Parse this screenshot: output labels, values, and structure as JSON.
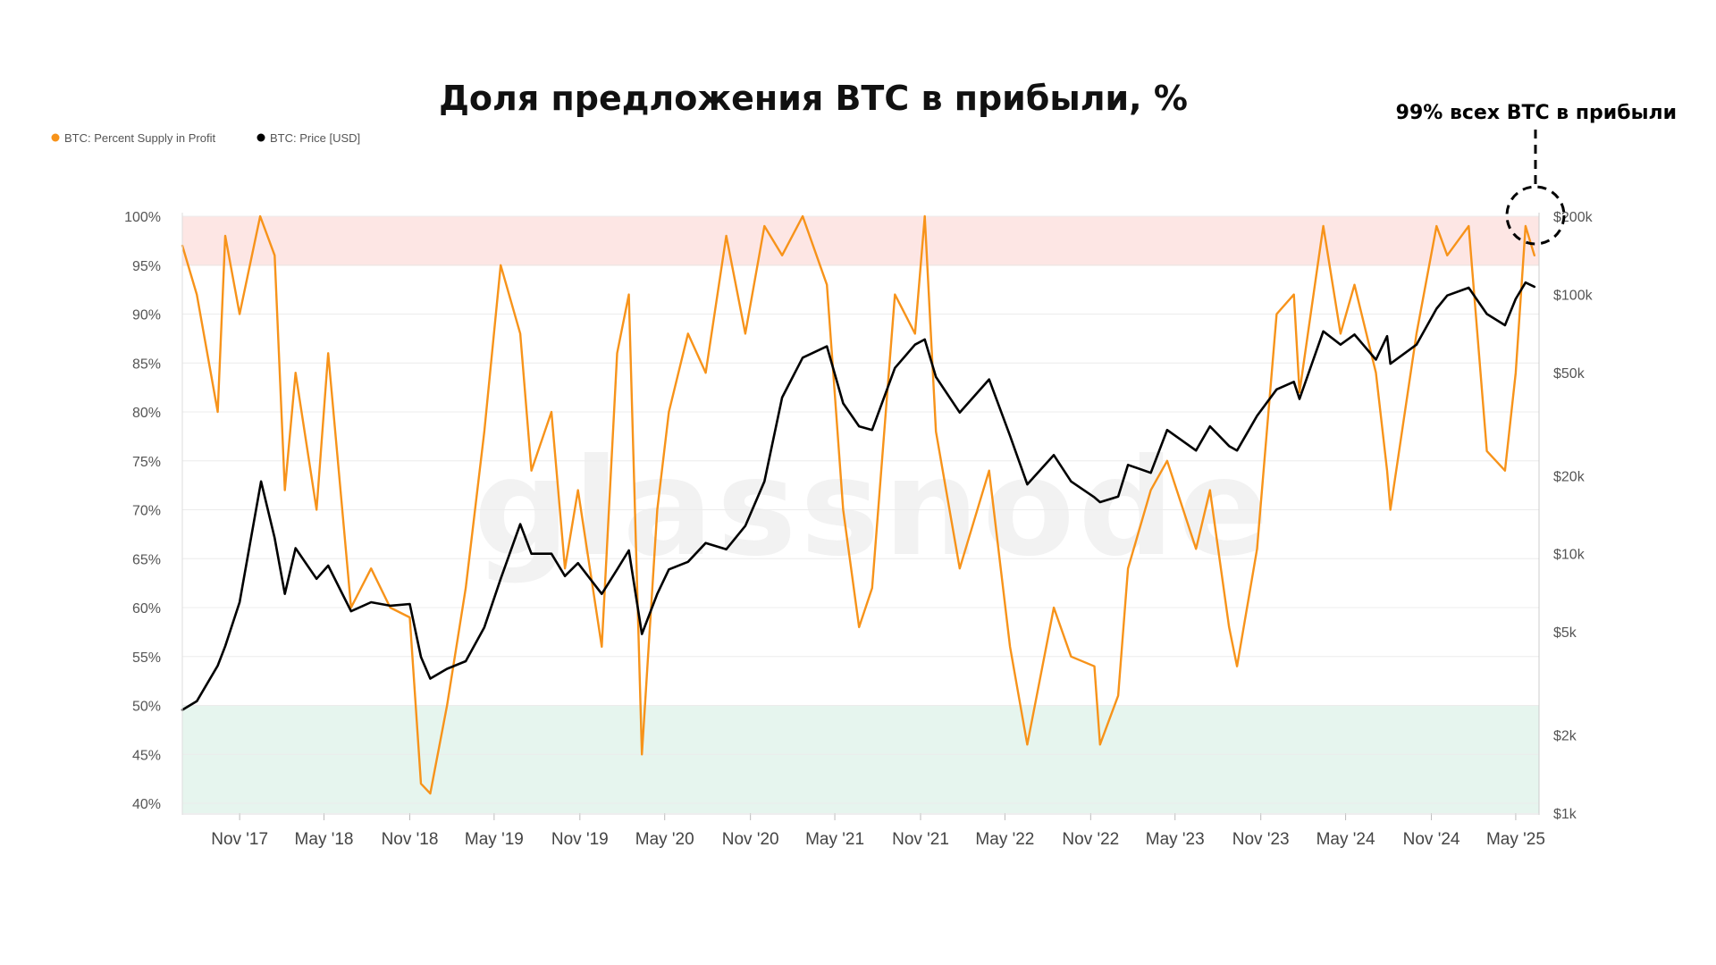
{
  "watermark": "glassnode",
  "callout": {
    "text": "99% всех BTC в прибыли"
  },
  "chart_data": {
    "type": "line",
    "title": "Доля предложения BTC в прибыли, %",
    "legend": [
      {
        "name": "BTC: Percent Supply in Profit",
        "color": "#F7931A"
      },
      {
        "name": "BTC: Price [USD]",
        "color": "#000000"
      }
    ],
    "legend_position": "top-left",
    "grid": true,
    "x_range": [
      "2017-07-01",
      "2025-06-20"
    ],
    "x_ticks": [
      {
        "label": "Nov '17",
        "date": "2017-11-01"
      },
      {
        "label": "May '18",
        "date": "2018-05-01"
      },
      {
        "label": "Nov '18",
        "date": "2018-11-01"
      },
      {
        "label": "May '19",
        "date": "2019-05-01"
      },
      {
        "label": "Nov '19",
        "date": "2019-11-01"
      },
      {
        "label": "May '20",
        "date": "2020-05-01"
      },
      {
        "label": "Nov '20",
        "date": "2020-11-01"
      },
      {
        "label": "May '21",
        "date": "2021-05-01"
      },
      {
        "label": "Nov '21",
        "date": "2021-11-01"
      },
      {
        "label": "May '22",
        "date": "2022-05-01"
      },
      {
        "label": "Nov '22",
        "date": "2022-11-01"
      },
      {
        "label": "May '23",
        "date": "2023-05-01"
      },
      {
        "label": "Nov '23",
        "date": "2023-11-01"
      },
      {
        "label": "May '24",
        "date": "2024-05-01"
      },
      {
        "label": "Nov '24",
        "date": "2024-11-01"
      },
      {
        "label": "May '25",
        "date": "2025-05-01"
      }
    ],
    "y_left": {
      "unit": "%",
      "range": [
        39,
        100
      ],
      "ticks": [
        "100%",
        "95%",
        "90%",
        "85%",
        "80%",
        "75%",
        "70%",
        "65%",
        "60%",
        "55%",
        "50%",
        "45%",
        "40%"
      ],
      "tick_values": [
        100,
        95,
        90,
        85,
        80,
        75,
        70,
        65,
        60,
        55,
        50,
        45,
        40
      ]
    },
    "y_right": {
      "scale": "log",
      "range": [
        1000,
        200000
      ],
      "ticks": [
        "$200k",
        "$100k",
        "$50k",
        "$20k",
        "$10k",
        "$5k",
        "$2k",
        "$1k"
      ],
      "tick_values": [
        200000,
        100000,
        50000,
        20000,
        10000,
        5000,
        2000,
        1000
      ]
    },
    "bands": [
      {
        "from": 95,
        "to": 100,
        "color": "#FDE6E4"
      },
      {
        "from": 39,
        "to": 50,
        "color": "#E6F5EE"
      }
    ],
    "series": [
      {
        "name": "BTC: Percent Supply in Profit",
        "color": "#F7931A",
        "axis": "left",
        "x": [
          "2017-07-01",
          "2017-08-01",
          "2017-09-15",
          "2017-10-01",
          "2017-11-01",
          "2017-12-15",
          "2018-01-15",
          "2018-02-06",
          "2018-03-01",
          "2018-04-15",
          "2018-05-10",
          "2018-06-28",
          "2018-08-10",
          "2018-09-20",
          "2018-11-01",
          "2018-11-25",
          "2018-12-15",
          "2019-01-20",
          "2019-03-01",
          "2019-04-10",
          "2019-05-15",
          "2019-06-26",
          "2019-07-20",
          "2019-09-01",
          "2019-09-30",
          "2019-10-28",
          "2019-12-18",
          "2020-01-20",
          "2020-02-14",
          "2020-03-13",
          "2020-04-15",
          "2020-05-10",
          "2020-06-20",
          "2020-07-28",
          "2020-09-10",
          "2020-10-21",
          "2020-12-01",
          "2021-01-08",
          "2021-02-21",
          "2021-04-14",
          "2021-05-19",
          "2021-06-22",
          "2021-07-20",
          "2021-09-07",
          "2021-10-20",
          "2021-11-10",
          "2021-12-04",
          "2022-01-24",
          "2022-03-28",
          "2022-05-12",
          "2022-06-18",
          "2022-08-14",
          "2022-09-20",
          "2022-11-09",
          "2022-11-21",
          "2022-12-30",
          "2023-01-20",
          "2023-03-10",
          "2023-04-14",
          "2023-06-15",
          "2023-07-15",
          "2023-08-25",
          "2023-09-11",
          "2023-10-24",
          "2023-12-05",
          "2024-01-11",
          "2024-01-23",
          "2024-03-14",
          "2024-04-20",
          "2024-05-20",
          "2024-07-05",
          "2024-07-29",
          "2024-08-05",
          "2024-09-30",
          "2024-11-12",
          "2024-12-05",
          "2025-01-20",
          "2025-02-28",
          "2025-04-08",
          "2025-05-01",
          "2025-05-22",
          "2025-06-10"
        ],
        "values": [
          97,
          92,
          80,
          98,
          90,
          100,
          96,
          72,
          84,
          70,
          86,
          60,
          64,
          60,
          59,
          42,
          41,
          50,
          62,
          78,
          95,
          88,
          74,
          80,
          64,
          72,
          56,
          86,
          92,
          45,
          70,
          80,
          88,
          84,
          98,
          88,
          99,
          96,
          100,
          93,
          70,
          58,
          62,
          92,
          88,
          100,
          78,
          64,
          74,
          56,
          46,
          60,
          55,
          54,
          46,
          51,
          64,
          72,
          75,
          66,
          72,
          58,
          54,
          66,
          90,
          92,
          82,
          99,
          88,
          93,
          84,
          74,
          70,
          88,
          99,
          96,
          99,
          76,
          74,
          84,
          99,
          96
        ]
      },
      {
        "name": "BTC: Price [USD]",
        "color": "#000000",
        "axis": "right",
        "x": [
          "2017-07-01",
          "2017-08-01",
          "2017-09-15",
          "2017-10-01",
          "2017-11-01",
          "2017-12-17",
          "2018-01-15",
          "2018-02-06",
          "2018-03-01",
          "2018-04-15",
          "2018-05-10",
          "2018-06-28",
          "2018-08-10",
          "2018-09-20",
          "2018-11-01",
          "2018-11-25",
          "2018-12-15",
          "2019-01-20",
          "2019-03-01",
          "2019-04-10",
          "2019-05-15",
          "2019-06-26",
          "2019-07-20",
          "2019-09-01",
          "2019-09-30",
          "2019-10-28",
          "2019-12-18",
          "2020-01-20",
          "2020-02-14",
          "2020-03-13",
          "2020-04-15",
          "2020-05-10",
          "2020-06-20",
          "2020-07-28",
          "2020-09-10",
          "2020-10-21",
          "2020-12-01",
          "2021-01-08",
          "2021-02-21",
          "2021-04-14",
          "2021-05-19",
          "2021-06-22",
          "2021-07-20",
          "2021-09-07",
          "2021-10-20",
          "2021-11-10",
          "2021-12-04",
          "2022-01-24",
          "2022-03-28",
          "2022-05-12",
          "2022-06-18",
          "2022-08-14",
          "2022-09-20",
          "2022-11-09",
          "2022-11-21",
          "2022-12-30",
          "2023-01-20",
          "2023-03-10",
          "2023-04-14",
          "2023-06-15",
          "2023-07-15",
          "2023-08-25",
          "2023-09-11",
          "2023-10-24",
          "2023-12-05",
          "2024-01-11",
          "2024-01-23",
          "2024-03-14",
          "2024-04-20",
          "2024-05-20",
          "2024-07-05",
          "2024-07-29",
          "2024-08-05",
          "2024-09-30",
          "2024-11-12",
          "2024-12-05",
          "2025-01-20",
          "2025-02-28",
          "2025-04-08",
          "2025-05-01",
          "2025-05-22",
          "2025-06-10"
        ],
        "values": [
          2500,
          2700,
          3700,
          4400,
          6500,
          19000,
          11500,
          7000,
          10500,
          8000,
          9000,
          6000,
          6500,
          6300,
          6400,
          4000,
          3300,
          3600,
          3850,
          5200,
          8000,
          13000,
          10000,
          10000,
          8200,
          9200,
          7000,
          8700,
          10300,
          4900,
          7000,
          8700,
          9300,
          11000,
          10400,
          12800,
          19000,
          40000,
          57000,
          63000,
          38000,
          31000,
          30000,
          52000,
          64000,
          67000,
          48000,
          35000,
          47000,
          28500,
          18500,
          24000,
          19000,
          16500,
          15800,
          16600,
          22000,
          20500,
          30000,
          25000,
          31000,
          26000,
          25000,
          34000,
          43000,
          46000,
          39500,
          72000,
          64000,
          70000,
          56000,
          69000,
          54000,
          64000,
          88000,
          99000,
          106000,
          84000,
          76000,
          96000,
          111000,
          107000
        ]
      }
    ]
  }
}
